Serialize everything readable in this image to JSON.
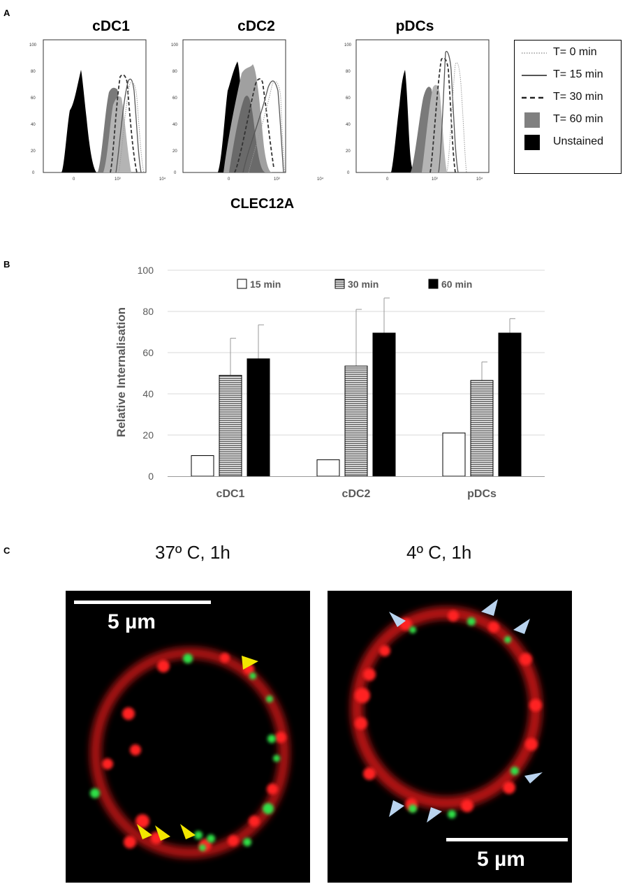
{
  "panel_a": {
    "letter": "A",
    "titles": [
      "cDC1",
      "cDC2",
      "pDCs"
    ],
    "y_ticks": [
      "100",
      "80",
      "60",
      "40",
      "20",
      "0"
    ],
    "x_ticks": [
      "0",
      "10³",
      "10⁴"
    ],
    "axis_label": "CLEC12A",
    "legend": [
      {
        "label": "T= 0 min",
        "style": "dotted"
      },
      {
        "label": "T= 15 min",
        "style": "solid"
      },
      {
        "label": "T= 30 min",
        "style": "dashed"
      },
      {
        "label": "T= 60 min",
        "style": "gray-fill"
      },
      {
        "label": "Unstained",
        "style": "black-fill"
      }
    ]
  },
  "panel_b": {
    "letter": "B",
    "chart_data": {
      "type": "bar",
      "categories": [
        "cDC1",
        "cDC2",
        "pDCs"
      ],
      "ylabel": "Relative Internalisation",
      "ylim": [
        0,
        100
      ],
      "yticks": [
        0,
        20,
        40,
        60,
        80,
        100
      ],
      "legend_position": "top",
      "series": [
        {
          "name": "15 min",
          "values": [
            10,
            8,
            21
          ],
          "errors": [
            0,
            0,
            0
          ],
          "fill": "white"
        },
        {
          "name": "30 min",
          "values": [
            49,
            53.5,
            46.5
          ],
          "errors": [
            18,
            27.5,
            9
          ],
          "fill": "hatched"
        },
        {
          "name": "60 min",
          "values": [
            57,
            69.5,
            69.5
          ],
          "errors": [
            16.5,
            17,
            7
          ],
          "fill": "black"
        }
      ]
    }
  },
  "panel_c": {
    "letter": "C",
    "left_label": "37º C, 1h",
    "right_label": "4º C, 1h",
    "left_scale": "5 µm",
    "right_scale": "5 µm",
    "colors": {
      "membrane": "#e0191a",
      "puncta": "#22c83a",
      "left_arrow": "#f2e600",
      "right_arrow": "#b9d3ee"
    }
  }
}
